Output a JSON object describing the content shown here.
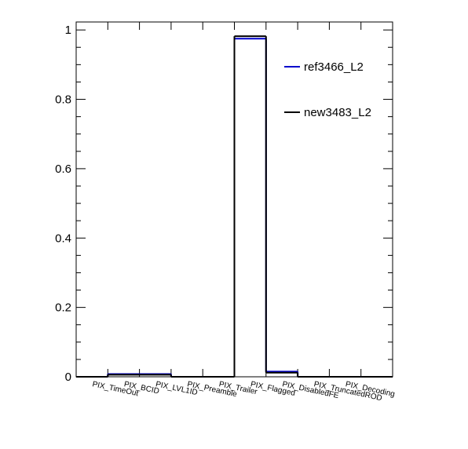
{
  "chart_data": {
    "type": "histogram",
    "categories": [
      "PIX_TimeOut",
      "PIX_BCID",
      "PIX_LVL1ID",
      "PIX_Preamble",
      "PIX_Trailer",
      "PIX_Flagged",
      "PIX_DisabledFE",
      "PIX_TruncatedROD",
      "PIX_Decoding",
      null
    ],
    "series": [
      {
        "name": "ref3466_L2",
        "color": "#0000cc",
        "values": [
          0,
          0.008,
          0.008,
          0,
          0,
          0.975,
          0.015,
          0,
          0,
          0
        ]
      },
      {
        "name": "new3483_L2",
        "color": "#000000",
        "values": [
          0,
          0.006,
          0.006,
          0,
          0,
          0.982,
          0.012,
          0,
          0,
          0
        ]
      }
    ],
    "ylim": [
      0,
      1.023
    ],
    "yticks": [
      0,
      0.2,
      0.4,
      0.6,
      0.8,
      1
    ],
    "yminorticks": [
      0.05,
      0.1,
      0.15,
      0.25,
      0.3,
      0.35,
      0.45,
      0.5,
      0.55,
      0.65,
      0.7,
      0.75,
      0.85,
      0.9,
      0.95
    ]
  }
}
